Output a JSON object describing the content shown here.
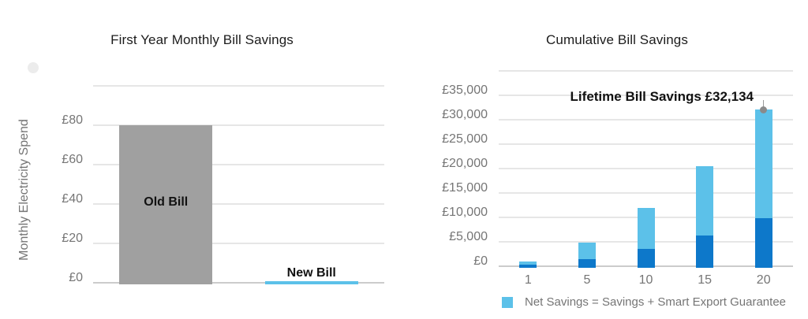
{
  "page": {
    "background": "#ffffff"
  },
  "chart_data": [
    {
      "type": "bar",
      "title": "First Year Monthly Bill Savings",
      "xlabel": "",
      "ylabel": "Monthly Electricity Spend",
      "categories": [
        "Old Bill",
        "New Bill"
      ],
      "values": [
        80,
        1
      ],
      "bar_colors": [
        "#a0a0a0",
        "#5cc1e9"
      ],
      "y_tick_labels": [
        "£0",
        "£20",
        "£40",
        "£60",
        "£80"
      ],
      "y_tick_values": [
        0,
        20,
        40,
        60,
        80
      ],
      "ylim": [
        0,
        100
      ],
      "grid_step": 20,
      "grid": true,
      "legend_position": "none",
      "currency": "£"
    },
    {
      "type": "stacked-bar",
      "title": "Cumulative Bill Savings",
      "xlabel": "",
      "ylabel": "",
      "categories": [
        "1",
        "5",
        "10",
        "15",
        "20"
      ],
      "series": [
        {
          "name": "",
          "color": "#0d78ca",
          "values": [
            300,
            1400,
            3600,
            6300,
            9800
          ]
        },
        {
          "name": "Net Savings = Savings + Smart Export Guarantee",
          "color": "#5cc1e9",
          "values": [
            700,
            3400,
            8300,
            14200,
            22334
          ]
        }
      ],
      "totals": [
        1000,
        4800,
        11900,
        20500,
        32134
      ],
      "annotation": {
        "text": "Lifetime Bill Savings £32,134",
        "value": 32134,
        "marker_color": "#8a8a8a",
        "target_category": "20"
      },
      "y_tick_labels": [
        "£0",
        "£5,000",
        "£10,000",
        "£15,000",
        "£20,000",
        "£25,000",
        "£30,000",
        "£35,000"
      ],
      "y_tick_values": [
        0,
        5000,
        10000,
        15000,
        20000,
        25000,
        30000,
        35000
      ],
      "ylim": [
        0,
        40000
      ],
      "grid_step": 5000,
      "grid": true,
      "legend_position": "bottom",
      "legend": [
        {
          "label": "Net Savings = Savings + Smart Export Guarantee",
          "color": "#5cc1e9"
        }
      ],
      "currency": "£"
    }
  ]
}
